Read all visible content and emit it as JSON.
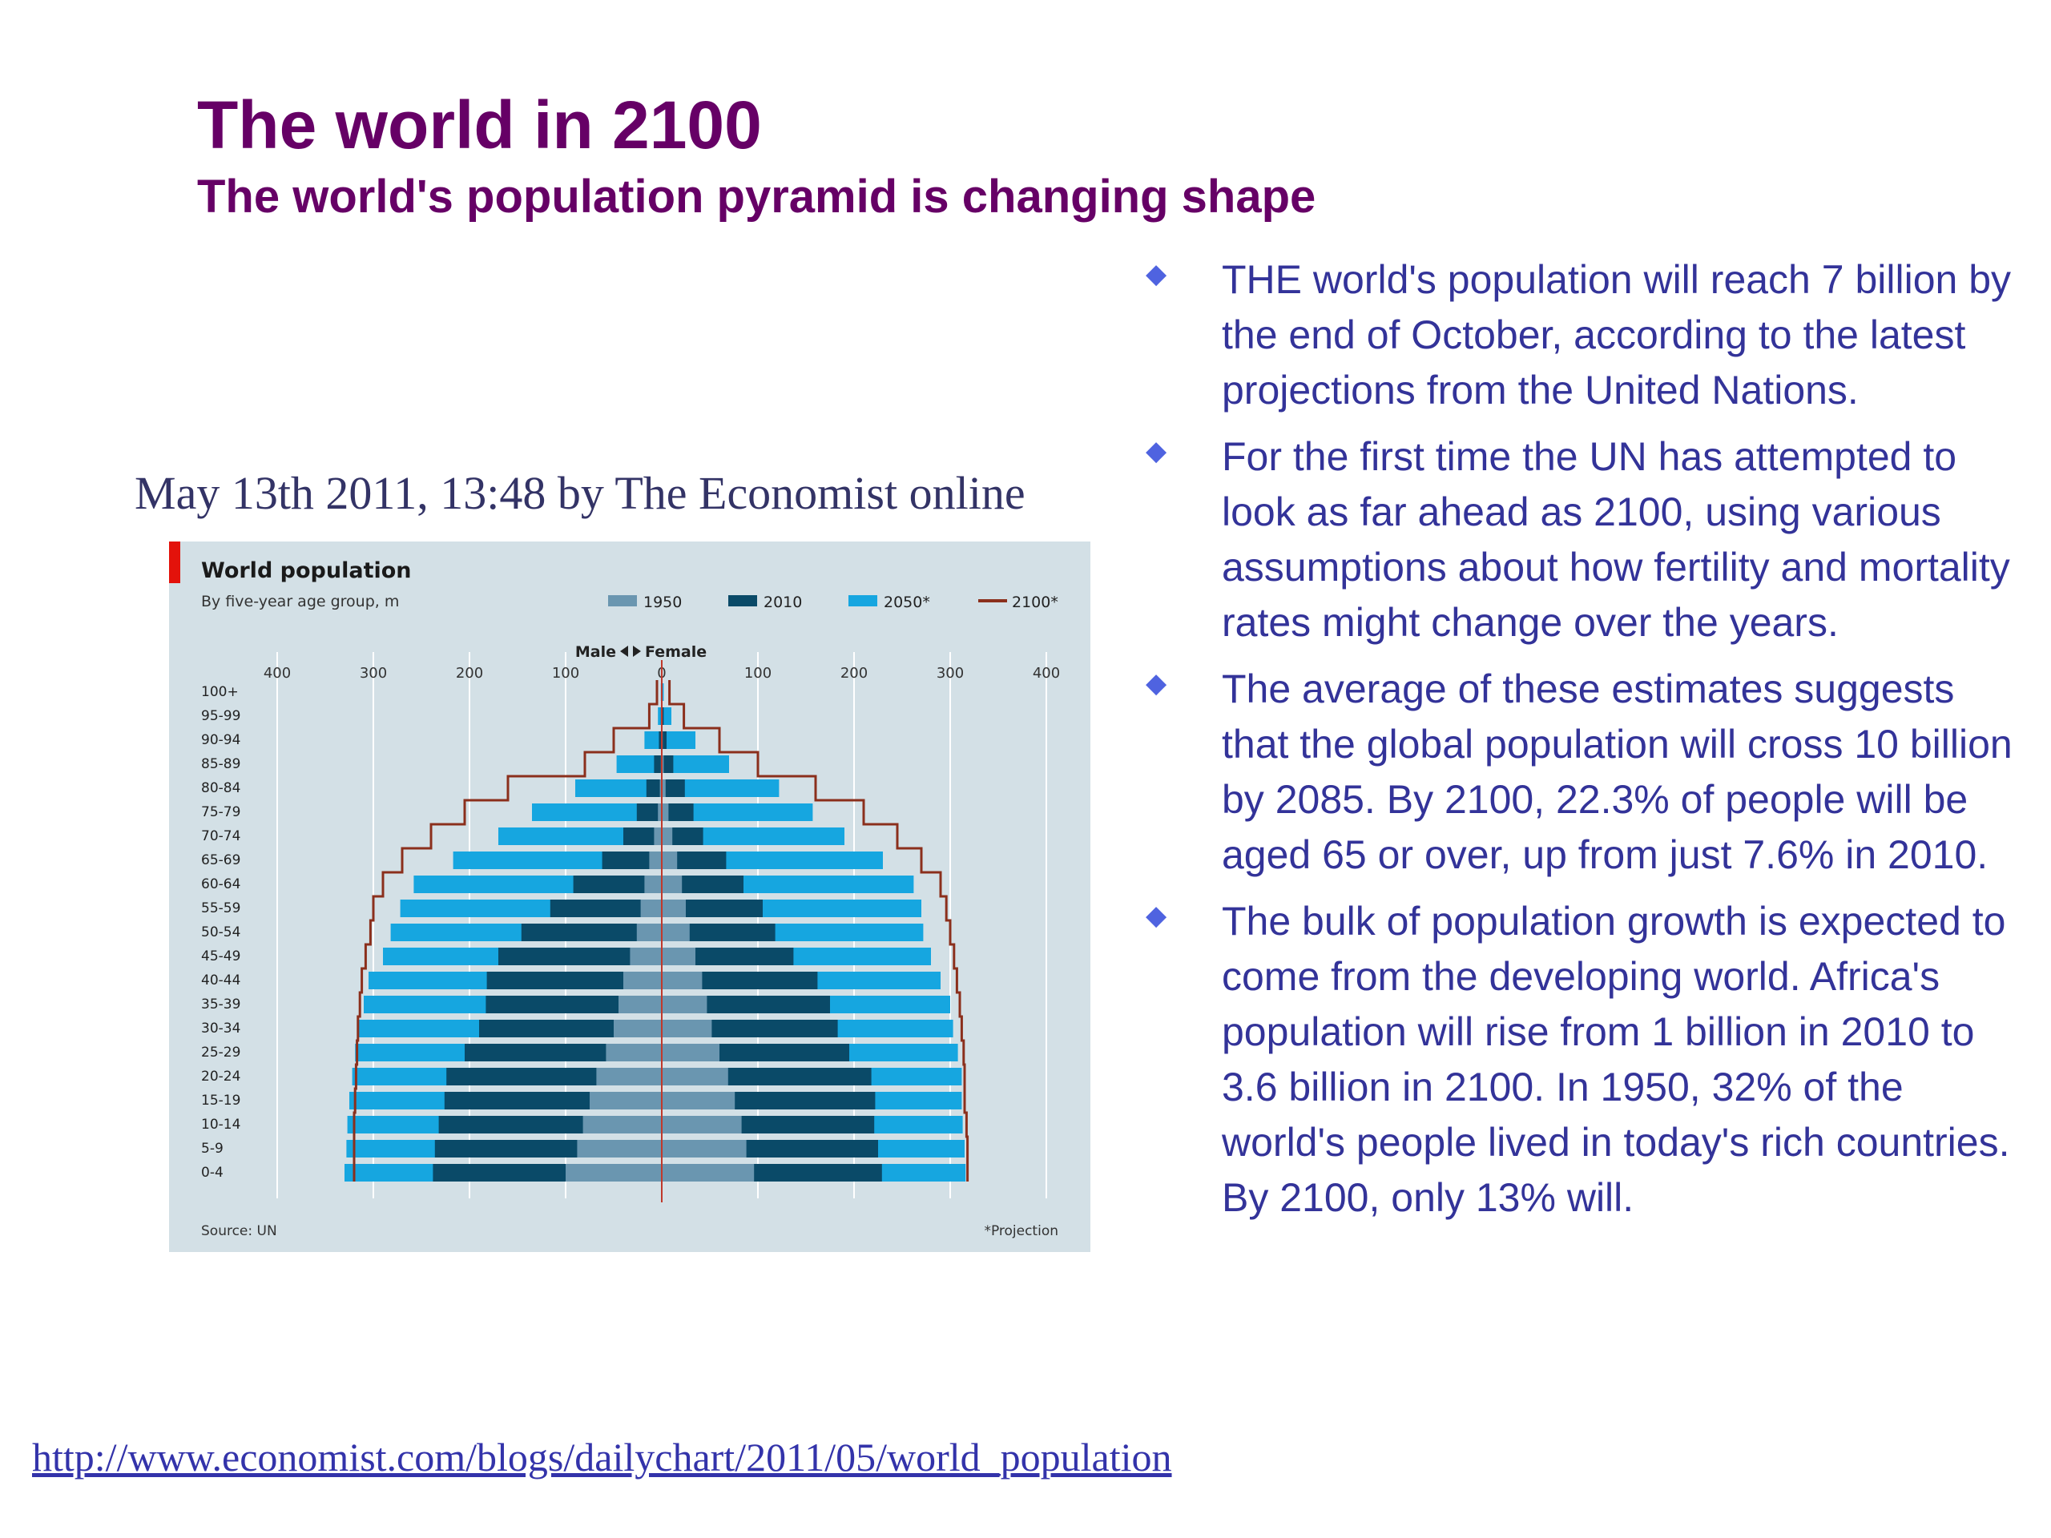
{
  "slide": {
    "title": "The world in 2100",
    "subtitle": "The world's population pyramid is changing shape",
    "byline": "May 13th 2011, 13:48 by The Economist online",
    "link": "http://www.economist.com/blogs/dailychart/2011/05/world_population"
  },
  "bullets": [
    "THE world's population will reach 7 billion by the end of October, according to the latest projections from the United Nations.",
    "For the first time the UN has attempted to look as far ahead as 2100, using various assumptions about how fertility and mortality rates might change over the years.",
    "The average of these estimates suggests that the global population will cross 10 billion by 2085. By 2100, 22.3% of people will be aged 65 or over, up from just 7.6% in 2010.",
    "The bulk of population growth is expected to come from the developing world. Africa's population will rise from 1 billion in 2010 to 3.6 billion in 2100. In 1950, 32% of the world's people lived in today's rich countries. By 2100, only 13% will."
  ],
  "colors": {
    "title": "#660066",
    "bullet_text": "#333399",
    "panel_bg": "#d3e0e6",
    "c1950": "#6a96b0",
    "c2010": "#0a4a68",
    "c2050": "#16a6e0",
    "c2100": "#8b2f1c",
    "accent_red": "#e3120b"
  },
  "chart_data": {
    "type": "bar",
    "title": "World population",
    "subtitle": "By five-year age group, m",
    "center_label_male": "Male",
    "center_label_female": "Female",
    "legend": [
      "1950",
      "2010",
      "2050*",
      "2100*"
    ],
    "source": "Source: UN",
    "footnote": "*Projection",
    "xlim": [
      -400,
      400
    ],
    "x_ticks": [
      "400",
      "300",
      "200",
      "100",
      "0",
      "100",
      "200",
      "300",
      "400"
    ],
    "categories": [
      "100+",
      "95-99",
      "90-94",
      "85-89",
      "80-84",
      "75-79",
      "70-74",
      "65-69",
      "60-64",
      "55-59",
      "50-54",
      "45-49",
      "40-44",
      "35-39",
      "30-34",
      "25-29",
      "20-24",
      "15-19",
      "10-14",
      "5-9",
      "0-4"
    ],
    "series": [
      {
        "name": "1950",
        "male": [
          0,
          0,
          0.5,
          1,
          2,
          4,
          8,
          13,
          18,
          22,
          26,
          33,
          40,
          45,
          50,
          58,
          68,
          75,
          82,
          88,
          100
        ],
        "female": [
          0,
          0.5,
          1,
          2,
          4,
          7,
          11,
          16,
          21,
          25,
          29,
          35,
          42,
          47,
          52,
          60,
          69,
          76,
          83,
          88,
          96
        ]
      },
      {
        "name": "2010",
        "male": [
          0.1,
          1,
          3,
          8,
          16,
          26,
          40,
          62,
          92,
          116,
          146,
          170,
          182,
          183,
          190,
          205,
          224,
          226,
          232,
          236,
          238
        ],
        "female": [
          0.3,
          2,
          5,
          12,
          24,
          33,
          43,
          67,
          85,
          105,
          118,
          137,
          162,
          175,
          183,
          195,
          218,
          222,
          221,
          225,
          229
        ]
      },
      {
        "name": "2050*",
        "male": [
          1,
          4,
          18,
          47,
          90,
          135,
          170,
          217,
          258,
          272,
          282,
          290,
          305,
          310,
          316,
          319,
          322,
          325,
          327,
          328,
          330
        ],
        "female": [
          2,
          10,
          35,
          70,
          122,
          157,
          190,
          230,
          262,
          270,
          272,
          280,
          290,
          300,
          303,
          308,
          312,
          312,
          313,
          315,
          316
        ]
      },
      {
        "name": "2100*",
        "male": [
          5,
          13,
          50,
          80,
          160,
          205,
          240,
          270,
          290,
          300,
          303,
          308,
          312,
          314,
          316,
          317,
          318,
          319,
          320,
          320,
          320
        ],
        "female": [
          8,
          23,
          60,
          100,
          160,
          210,
          245,
          270,
          290,
          296,
          300,
          304,
          307,
          310,
          312,
          314,
          315,
          315,
          317,
          318,
          318
        ]
      }
    ],
    "grid": true,
    "legend_position": "top-right"
  }
}
